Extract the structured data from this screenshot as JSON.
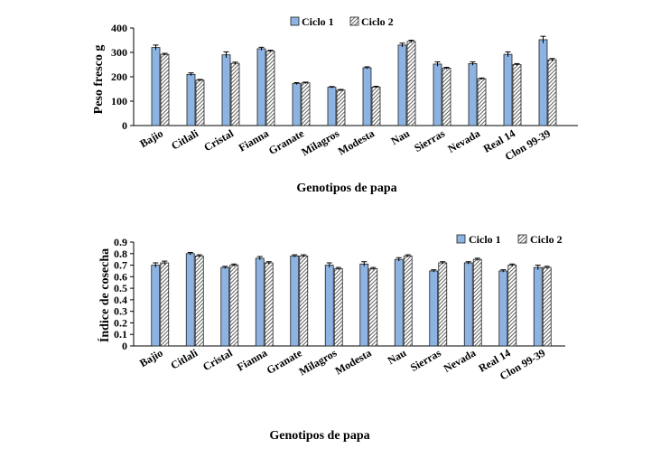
{
  "colors": {
    "ciclo1_fill": "#8db3e2",
    "ciclo1_stroke": "#1f1f1f",
    "ciclo2_hatch": "#3a3a3a",
    "axis": "#000000"
  },
  "chart_data": [
    {
      "type": "bar",
      "title": "",
      "xlabel": "Genotipos de papa",
      "ylabel": "Peso fresco g",
      "ylim": [
        0,
        400
      ],
      "yticks": [
        "0",
        "100",
        "200",
        "300",
        "400"
      ],
      "legend_position": "top",
      "categories": [
        "Bajio",
        "Citlali",
        "Cristal",
        "Fianna",
        "Granate",
        "Milagros",
        "Modesta",
        "Nau",
        "Sierras",
        "Nevada",
        "Real 14",
        "Clon 99-39"
      ],
      "series": [
        {
          "name": "Ciclo 1",
          "pattern": "solid",
          "values": [
            320,
            210,
            290,
            315,
            172,
            157,
            237,
            330,
            252,
            254,
            292,
            352
          ],
          "errors": [
            10,
            6,
            12,
            6,
            4,
            3,
            4,
            8,
            9,
            7,
            10,
            14
          ]
        },
        {
          "name": "Ciclo 2",
          "pattern": "hatch",
          "values": [
            292,
            186,
            255,
            305,
            175,
            145,
            158,
            345,
            235,
            192,
            250,
            270
          ],
          "errors": [
            4,
            3,
            5,
            4,
            3,
            3,
            3,
            5,
            4,
            3,
            4,
            5
          ]
        }
      ]
    },
    {
      "type": "bar",
      "title": "",
      "xlabel": "Genotipos de papa",
      "ylabel": "Índice de cosecha",
      "ylim": [
        0,
        0.9
      ],
      "yticks": [
        "0",
        "0.1",
        "0.2",
        "0.3",
        "0.4",
        "0.5",
        "0.6",
        "0.7",
        "0.8",
        "0.9"
      ],
      "legend_position": "top-right",
      "categories": [
        "Bajio",
        "Citlali",
        "Cristal",
        "Fianna",
        "Granate",
        "Milagros",
        "Modesta",
        "Nau",
        "Sierras",
        "Nevada",
        "Real 14",
        "Clon 99-39"
      ],
      "series": [
        {
          "name": "Ciclo 1",
          "pattern": "solid",
          "values": [
            0.7,
            0.8,
            0.68,
            0.76,
            0.78,
            0.7,
            0.71,
            0.75,
            0.65,
            0.72,
            0.65,
            0.68
          ],
          "errors": [
            0.02,
            0.01,
            0.01,
            0.015,
            0.01,
            0.02,
            0.02,
            0.015,
            0.01,
            0.01,
            0.01,
            0.02
          ]
        },
        {
          "name": "Ciclo 2",
          "pattern": "hatch",
          "values": [
            0.72,
            0.78,
            0.7,
            0.72,
            0.78,
            0.67,
            0.67,
            0.78,
            0.72,
            0.75,
            0.7,
            0.68
          ],
          "errors": [
            0.015,
            0.01,
            0.01,
            0.01,
            0.01,
            0.01,
            0.01,
            0.01,
            0.01,
            0.01,
            0.01,
            0.01
          ]
        }
      ]
    }
  ]
}
